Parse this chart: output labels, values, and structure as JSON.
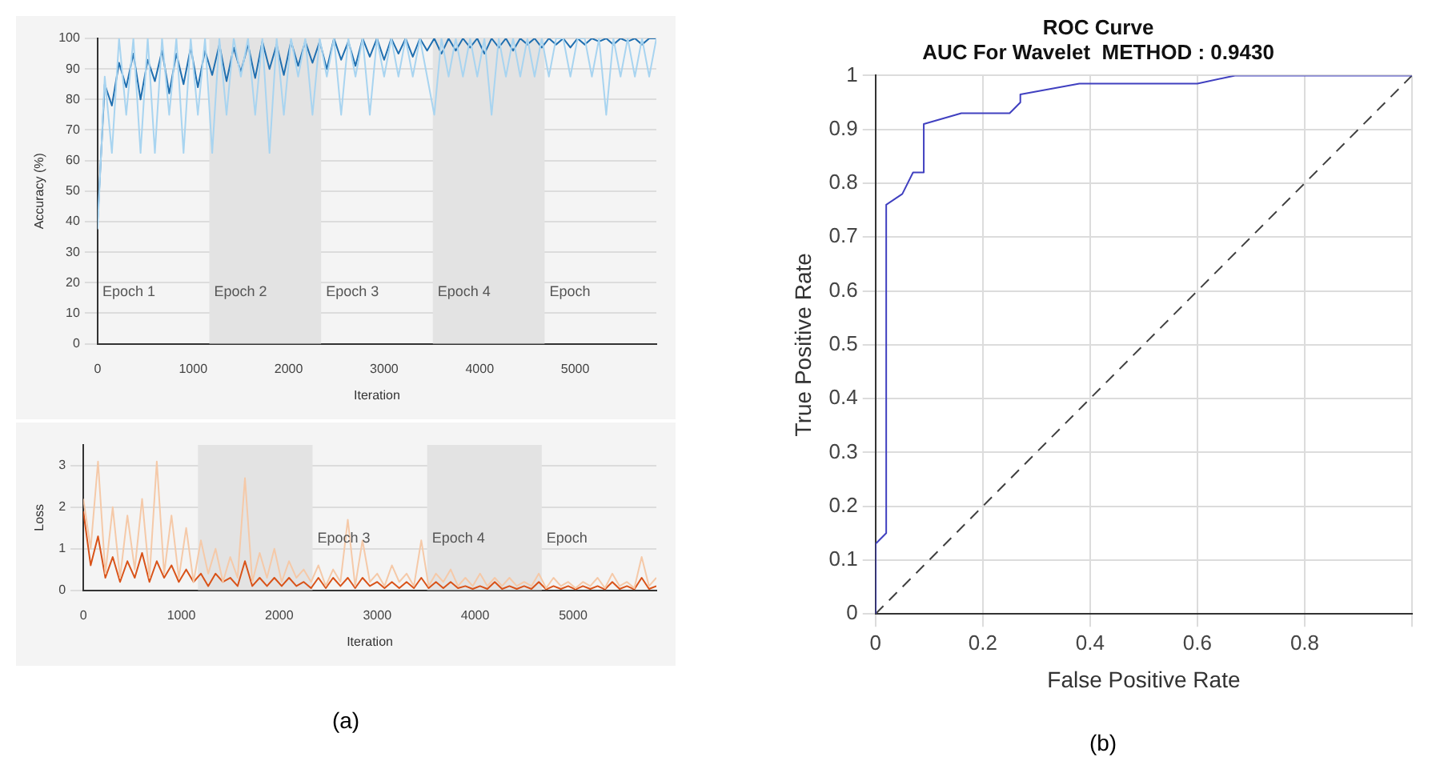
{
  "chart_data": [
    {
      "type": "line",
      "xlabel": "Iteration",
      "ylabel": "Accuracy (%)",
      "xlim": [
        0,
        5850
      ],
      "xticks": [
        0,
        1000,
        2000,
        3000,
        4000,
        5000
      ],
      "ylim": [
        0,
        100
      ],
      "yticks": [
        0,
        10,
        20,
        30,
        40,
        50,
        60,
        70,
        80,
        90,
        100
      ],
      "grid": "y",
      "legend": false,
      "x": [
        0,
        75,
        150,
        225,
        300,
        375,
        450,
        525,
        600,
        675,
        750,
        825,
        900,
        975,
        1050,
        1125,
        1200,
        1275,
        1350,
        1425,
        1500,
        1575,
        1650,
        1725,
        1800,
        1875,
        1950,
        2025,
        2100,
        2175,
        2250,
        2325,
        2400,
        2475,
        2550,
        2625,
        2700,
        2775,
        2850,
        2925,
        3000,
        3075,
        3150,
        3225,
        3300,
        3375,
        3450,
        3525,
        3600,
        3675,
        3750,
        3825,
        3900,
        3975,
        4050,
        4125,
        4200,
        4275,
        4350,
        4425,
        4500,
        4575,
        4650,
        4725,
        4800,
        4875,
        4950,
        5025,
        5100,
        5175,
        5250,
        5325,
        5400,
        5475,
        5550,
        5625,
        5700,
        5775,
        5850
      ],
      "bands": [
        {
          "axis": "x",
          "from": 1170,
          "to": 2340,
          "label": "Epoch 2",
          "color": "#e3e3e3"
        },
        {
          "axis": "x",
          "from": 3510,
          "to": 4680,
          "label": "Epoch 4",
          "color": "#e3e3e3"
        }
      ],
      "annotations": [
        "(a)",
        "Epoch 1",
        "Epoch 3",
        "Epoch"
      ],
      "series": [
        {
          "color": "#a8d4f0",
          "values": [
            37.5,
            87.5,
            62.5,
            100,
            75,
            100,
            62.5,
            100,
            62.5,
            100,
            75,
            100,
            62.5,
            100,
            75,
            100,
            62.5,
            100,
            75,
            100,
            87.5,
            100,
            75,
            100,
            62.5,
            100,
            75,
            100,
            87.5,
            100,
            75,
            100,
            87.5,
            100,
            75,
            100,
            87.5,
            100,
            75,
            100,
            87.5,
            100,
            87.5,
            100,
            87.5,
            100,
            87.5,
            75,
            100,
            87.5,
            100,
            87.5,
            100,
            87.5,
            100,
            75,
            100,
            87.5,
            100,
            87.5,
            100,
            87.5,
            100,
            87.5,
            100,
            100,
            87.5,
            100,
            100,
            87.5,
            100,
            75,
            100,
            87.5,
            100,
            87.5,
            100,
            87.5,
            100
          ]
        },
        {
          "color": "#1f6fb0",
          "values": [
            40,
            85,
            78,
            92,
            84,
            95,
            80,
            93,
            86,
            96,
            82,
            95,
            85,
            97,
            84,
            96,
            88,
            98,
            86,
            97,
            89,
            98,
            87,
            99,
            90,
            98,
            88,
            99,
            91,
            99,
            92,
            99,
            90,
            100,
            93,
            99,
            91,
            100,
            94,
            100,
            93,
            100,
            95,
            100,
            94,
            100,
            96,
            100,
            95,
            100,
            96,
            100,
            97,
            100,
            95,
            100,
            97,
            100,
            96,
            100,
            98,
            100,
            97,
            100,
            98,
            100,
            97,
            100,
            98,
            100,
            99,
            100,
            98,
            100,
            99,
            100,
            98,
            100,
            100
          ]
        }
      ]
    },
    {
      "type": "line",
      "xlabel": "Iteration",
      "ylabel": "Loss",
      "xlim": [
        0,
        5850
      ],
      "xticks": [
        0,
        1000,
        2000,
        3000,
        4000,
        5000
      ],
      "ylim": [
        0,
        3.5
      ],
      "yticks": [
        0,
        1,
        2,
        3
      ],
      "grid": "y",
      "legend": false,
      "x": [
        0,
        75,
        150,
        225,
        300,
        375,
        450,
        525,
        600,
        675,
        750,
        825,
        900,
        975,
        1050,
        1125,
        1200,
        1275,
        1350,
        1425,
        1500,
        1575,
        1650,
        1725,
        1800,
        1875,
        1950,
        2025,
        2100,
        2175,
        2250,
        2325,
        2400,
        2475,
        2550,
        2625,
        2700,
        2775,
        2850,
        2925,
        3000,
        3075,
        3150,
        3225,
        3300,
        3375,
        3450,
        3525,
        3600,
        3675,
        3750,
        3825,
        3900,
        3975,
        4050,
        4125,
        4200,
        4275,
        4350,
        4425,
        4500,
        4575,
        4650,
        4725,
        4800,
        4875,
        4950,
        5025,
        5100,
        5175,
        5250,
        5325,
        5400,
        5475,
        5550,
        5625,
        5700,
        5775,
        5850
      ],
      "bands": [
        {
          "axis": "x",
          "from": 1170,
          "to": 2340,
          "color": "#e3e3e3"
        },
        {
          "axis": "x",
          "from": 3510,
          "to": 4680,
          "label": "Epoch 4",
          "color": "#e3e3e3"
        }
      ],
      "annotations": [
        "Epoch 3",
        "Epoch"
      ],
      "series": [
        {
          "color": "#f5c9a8",
          "values": [
            2.2,
            1.0,
            3.1,
            0.4,
            2.0,
            0.3,
            1.8,
            0.5,
            2.2,
            0.3,
            3.1,
            0.4,
            1.8,
            0.3,
            1.5,
            0.2,
            1.2,
            0.4,
            1.0,
            0.2,
            0.8,
            0.3,
            2.7,
            0.2,
            0.9,
            0.3,
            1.0,
            0.2,
            0.7,
            0.3,
            0.5,
            0.2,
            0.6,
            0.1,
            0.5,
            0.2,
            1.7,
            0.1,
            1.2,
            0.2,
            0.4,
            0.1,
            0.6,
            0.2,
            0.4,
            0.1,
            1.2,
            0.1,
            0.4,
            0.2,
            0.5,
            0.1,
            0.3,
            0.1,
            0.4,
            0.1,
            0.3,
            0.1,
            0.3,
            0.1,
            0.2,
            0.1,
            0.4,
            0.05,
            0.3,
            0.1,
            0.2,
            0.05,
            0.2,
            0.1,
            0.3,
            0.05,
            0.4,
            0.1,
            0.2,
            0.05,
            0.8,
            0.1,
            0.3
          ]
        },
        {
          "color": "#d95319",
          "values": [
            1.9,
            0.6,
            1.3,
            0.3,
            0.8,
            0.2,
            0.7,
            0.3,
            0.9,
            0.2,
            0.7,
            0.3,
            0.6,
            0.2,
            0.5,
            0.2,
            0.4,
            0.1,
            0.4,
            0.2,
            0.3,
            0.1,
            0.7,
            0.1,
            0.3,
            0.1,
            0.3,
            0.1,
            0.3,
            0.1,
            0.2,
            0.05,
            0.3,
            0.05,
            0.3,
            0.1,
            0.3,
            0.05,
            0.3,
            0.1,
            0.2,
            0.05,
            0.2,
            0.05,
            0.2,
            0.05,
            0.3,
            0.05,
            0.2,
            0.05,
            0.2,
            0.05,
            0.1,
            0.03,
            0.1,
            0.03,
            0.2,
            0.03,
            0.1,
            0.03,
            0.1,
            0.03,
            0.2,
            0.02,
            0.1,
            0.03,
            0.1,
            0.02,
            0.1,
            0.03,
            0.1,
            0.02,
            0.2,
            0.03,
            0.1,
            0.02,
            0.3,
            0.03,
            0.1
          ]
        }
      ]
    },
    {
      "type": "line",
      "title": "ROC Curve",
      "subtitle": "AUC For Wavelet  METHOD : 0.9430",
      "xlabel": "False Positive Rate",
      "ylabel": "True Positive Rate",
      "xlim": [
        0,
        1
      ],
      "xticks": [
        0,
        0.2,
        0.4,
        0.6,
        0.8,
        {
          "value": 1,
          "label": null
        }
      ],
      "ylim": [
        0,
        1
      ],
      "yticks": [
        0,
        0.1,
        0.2,
        0.3,
        0.4,
        0.5,
        0.6,
        0.7,
        0.8,
        0.9,
        1
      ],
      "grid": true,
      "legend": false,
      "annotations": [
        "(b)"
      ],
      "series": [
        {
          "color": "#4040c0",
          "x": [
            0,
            0,
            0.02,
            0.02,
            0.05,
            0.07,
            0.09,
            0.09,
            0.16,
            0.25,
            0.27,
            0.27,
            0.38,
            0.6,
            0.67,
            1
          ],
          "values": [
            0,
            0.13,
            0.15,
            0.76,
            0.78,
            0.82,
            0.82,
            0.91,
            0.93,
            0.93,
            0.95,
            0.965,
            0.985,
            0.985,
            1,
            1
          ]
        },
        {
          "color": "#404040",
          "line_style": "dashed",
          "x": [
            0,
            1
          ],
          "values": [
            0,
            1
          ]
        }
      ]
    }
  ]
}
